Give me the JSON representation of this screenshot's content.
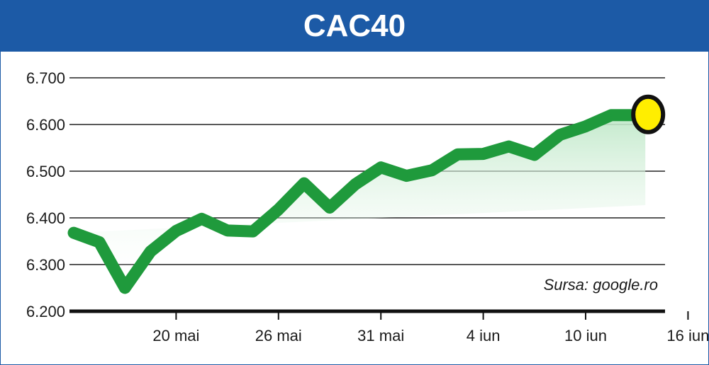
{
  "title": "CAC40",
  "source_label": "Sursa: google.ro",
  "colors": {
    "header_bg": "#1c5aa6",
    "line": "#1f9a3c",
    "area": "#cfeed6",
    "marker_fill": "#ffee00",
    "marker_stroke": "#111111",
    "grid": "#222222"
  },
  "chart_data": {
    "type": "line",
    "title": "CAC40",
    "xlabel": "",
    "ylabel": "",
    "ylim": [
      6200,
      6700
    ],
    "yticks": [
      6200,
      6300,
      6400,
      6500,
      6600,
      6700
    ],
    "ytick_labels": [
      "6.200",
      "6.300",
      "6.400",
      "6.500",
      "6.600",
      "6.700"
    ],
    "xtick_labels": [
      "20 mai",
      "26 mai",
      "31 mai",
      "4 iun",
      "10 iun",
      "16 iun"
    ],
    "xtick_index": [
      4,
      8,
      12,
      16,
      20,
      24
    ],
    "grid": true,
    "series": [
      {
        "values": [
          6368,
          6348,
          6250,
          6328,
          6372,
          6398,
          6373,
          6371,
          6418,
          6474,
          6422,
          6472,
          6508,
          6490,
          6502,
          6536,
          6537,
          6553,
          6535,
          6578,
          6596,
          6620,
          6620
        ]
      }
    ],
    "last_point_marker": true
  }
}
